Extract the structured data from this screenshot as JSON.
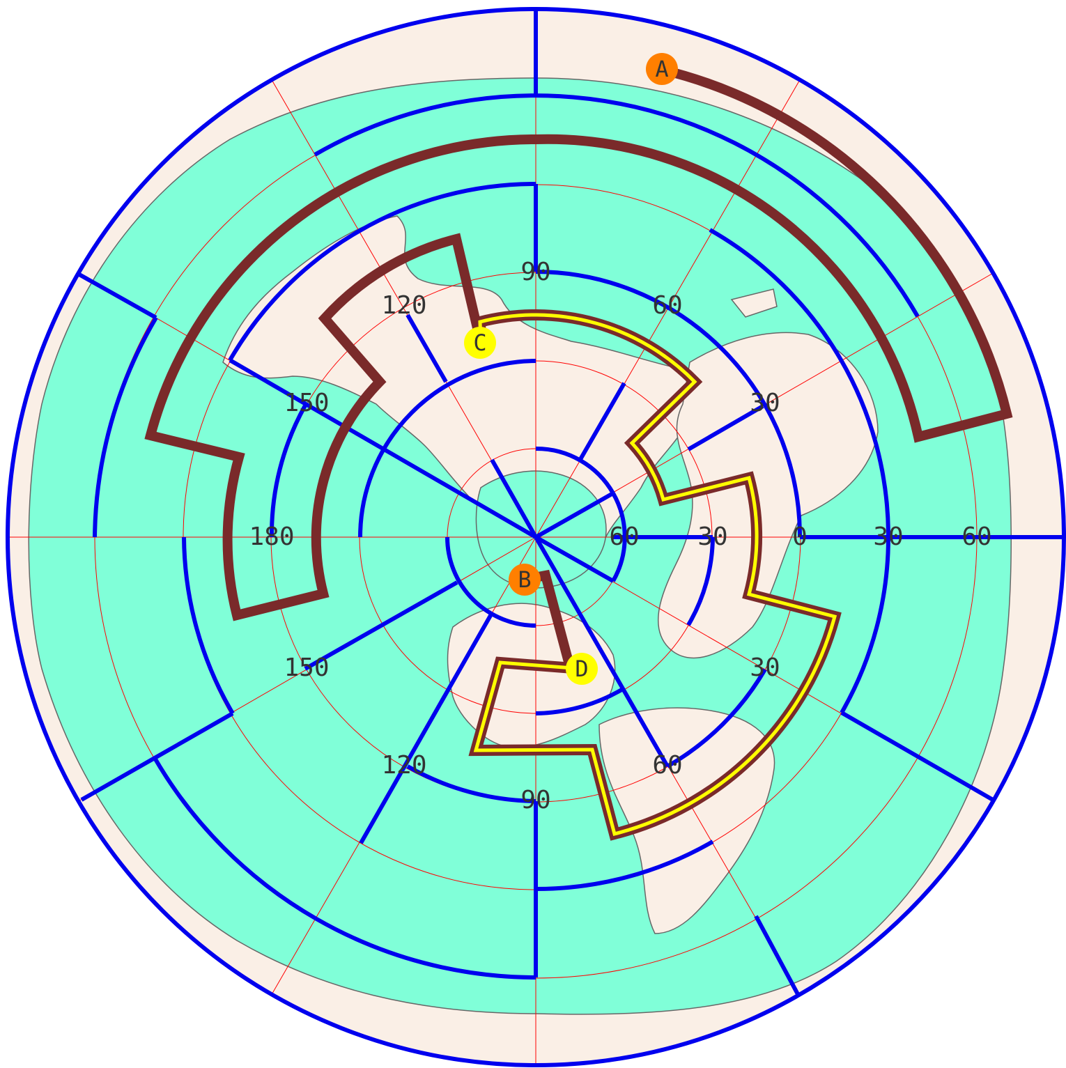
{
  "colors": {
    "land": "#faefe6",
    "ocean": "#80ffd8",
    "coast": "#666666",
    "graticule": "#ff0000",
    "maze": "#0000ee",
    "route": "#7a2a2a",
    "route_highlight": "#ffff00",
    "marker_orange": "#ff7f00",
    "marker_yellow": "#ffff00",
    "background": "#ffffff"
  },
  "map": {
    "projection": "azimuthal-equidistant-polar",
    "label_rings": [
      {
        "name": "ring-1",
        "values": [
          "90",
          "120",
          "150",
          "180",
          "150",
          "120",
          "90",
          "60",
          "30",
          "0",
          "30",
          "60"
        ]
      },
      {
        "name": "ring-2",
        "values": [
          "60",
          "30",
          "30",
          "60"
        ]
      },
      {
        "name": "ring-3",
        "values": [
          "30",
          "60"
        ]
      }
    ],
    "labels": {
      "top_90": "90",
      "top_120": "120",
      "top_150": "150",
      "left_180": "180",
      "bottom_150": "150",
      "bottom_120": "120",
      "bottom_90": "90",
      "bottom_60": "60",
      "bottom_30": "30",
      "right_0": "0",
      "right_30_a": "30",
      "right_60_a": "60",
      "top_60": "60",
      "top_30": "30",
      "inner_60": "60",
      "inner_30": "30",
      "outer_30": "30",
      "outer_60": "60"
    }
  },
  "markers": [
    {
      "id": "A",
      "label": "A",
      "color": "orange"
    },
    {
      "id": "B",
      "label": "B",
      "color": "orange"
    },
    {
      "id": "C",
      "label": "C",
      "color": "yellow"
    },
    {
      "id": "D",
      "label": "D",
      "color": "yellow"
    }
  ],
  "routes": [
    {
      "name": "route-A-B",
      "from": "A",
      "to": "B",
      "style": "plain"
    },
    {
      "name": "route-C-D",
      "from": "C",
      "to": "D",
      "style": "highlighted"
    }
  ]
}
